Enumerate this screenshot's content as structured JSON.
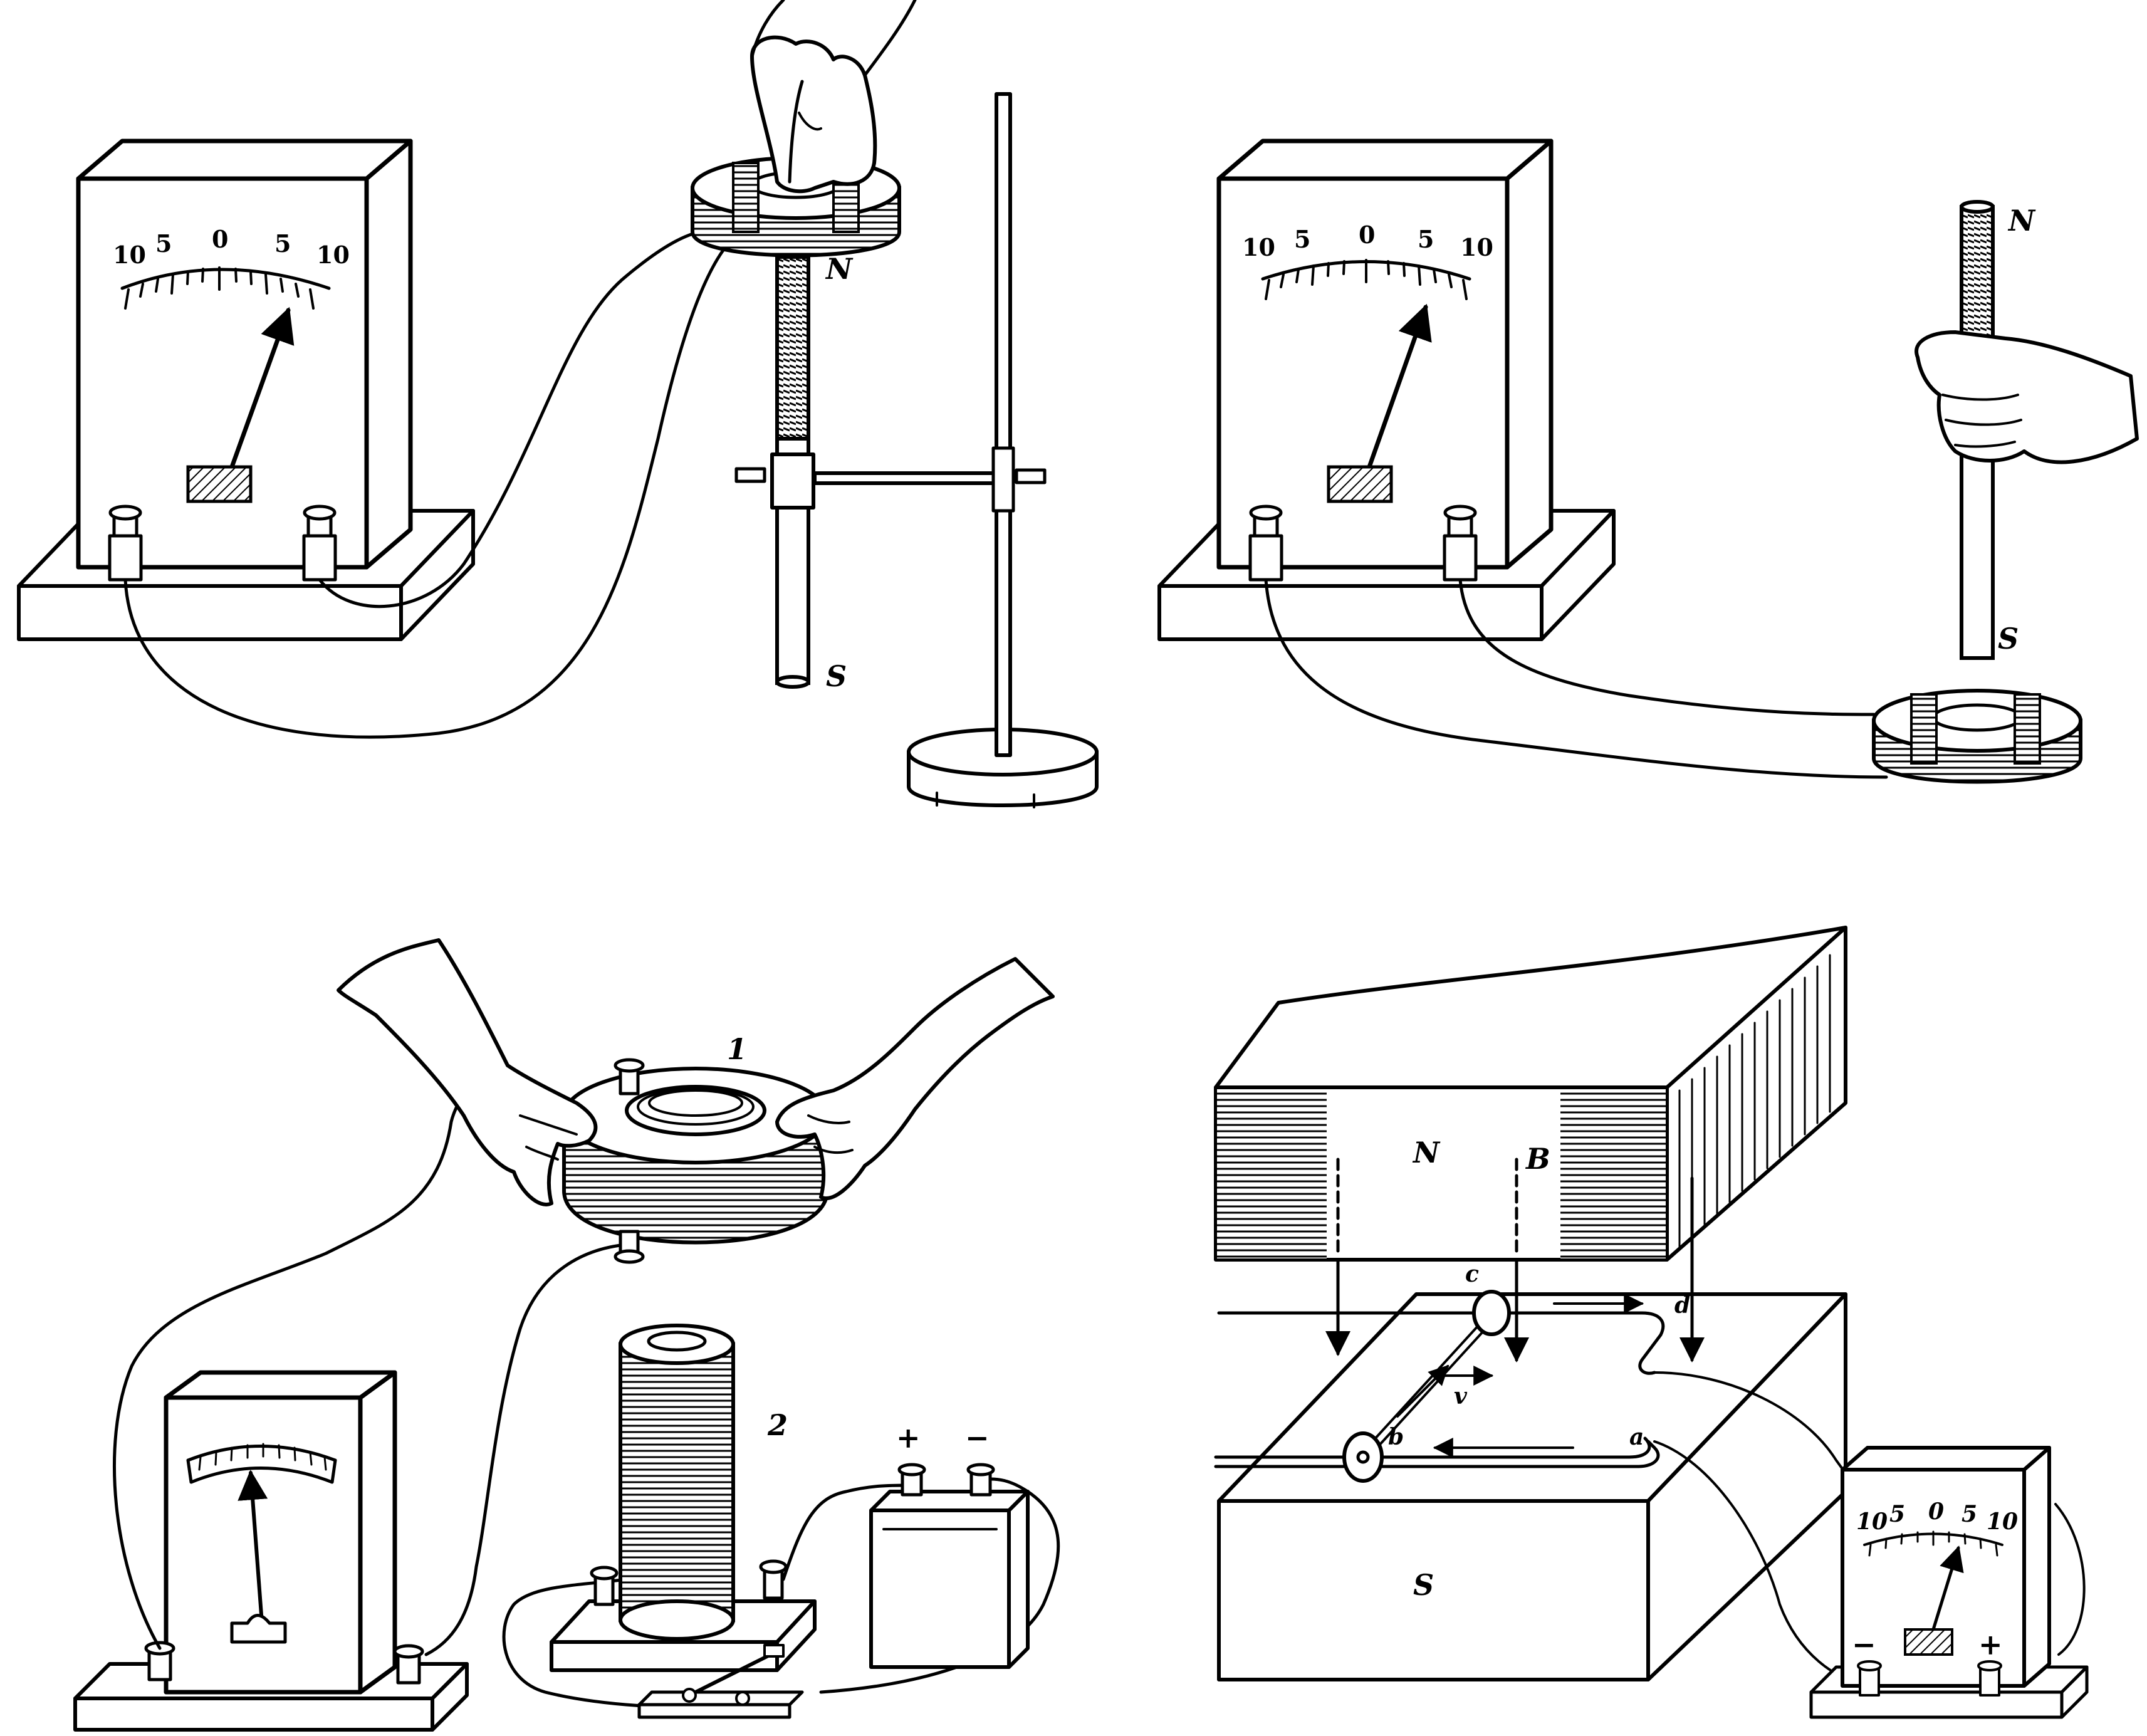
{
  "figures": [
    {
      "id": "fig-a",
      "meter": {
        "scale": [
          "10",
          "5",
          "0",
          "5",
          "10"
        ]
      },
      "magnet_labels": {
        "north": "N",
        "south": "S"
      }
    },
    {
      "id": "fig-b",
      "meter": {
        "scale": [
          "10",
          "5",
          "0",
          "5",
          "10"
        ]
      },
      "magnet_labels": {
        "north": "N",
        "south": "S"
      }
    },
    {
      "id": "fig-c",
      "coil_labels": {
        "outer": "1",
        "inner": "2"
      },
      "battery": {
        "plus": "+",
        "minus": "−"
      }
    },
    {
      "id": "fig-d",
      "magnet_labels": {
        "north": "N",
        "south": "S",
        "field": "B"
      },
      "conductor_labels": {
        "c": "c",
        "d": "d",
        "b": "b",
        "a": "a",
        "velocity": "v"
      },
      "meter": {
        "scale": [
          "10",
          "5",
          "0",
          "5",
          "10"
        ],
        "minus": "−",
        "plus": "+"
      }
    }
  ]
}
